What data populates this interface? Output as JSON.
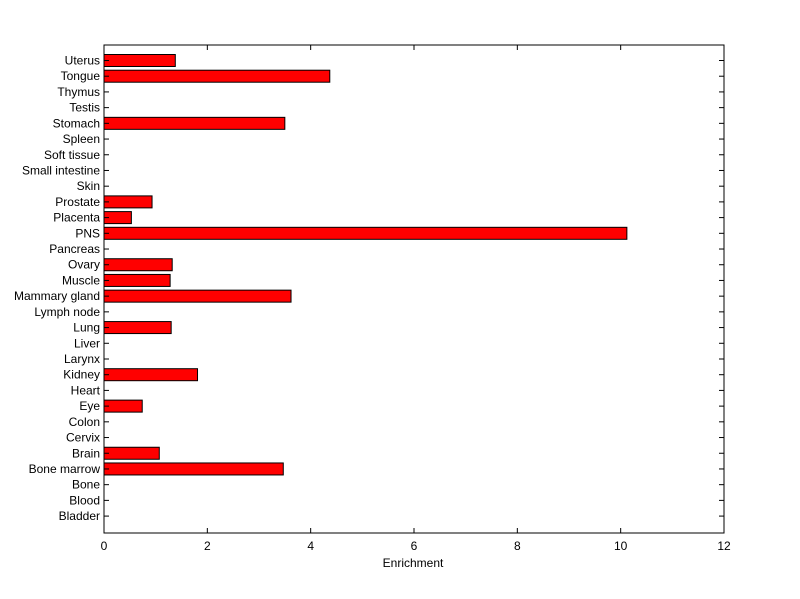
{
  "chart_data": {
    "type": "bar",
    "orientation": "horizontal",
    "title": "",
    "xlabel": "Enrichment",
    "ylabel": "",
    "xlim": [
      0,
      12
    ],
    "xticks": [
      0,
      2,
      4,
      6,
      8,
      10,
      12
    ],
    "grid": false,
    "legend": "none",
    "bar_color": "#ff0000",
    "categories": [
      "Uterus",
      "Tongue",
      "Thymus",
      "Testis",
      "Stomach",
      "Spleen",
      "Soft tissue",
      "Small intestine",
      "Skin",
      "Prostate",
      "Placenta",
      "PNS",
      "Pancreas",
      "Ovary",
      "Muscle",
      "Mammary gland",
      "Lymph node",
      "Lung",
      "Liver",
      "Larynx",
      "Kidney",
      "Heart",
      "Eye",
      "Colon",
      "Cervix",
      "Brain",
      "Bone marrow",
      "Bone",
      "Blood",
      "Bladder"
    ],
    "values": [
      1.38,
      4.37,
      0,
      0,
      3.5,
      0,
      0,
      0,
      0,
      0.93,
      0.53,
      10.12,
      0,
      1.32,
      1.28,
      3.62,
      0,
      1.3,
      0,
      0,
      1.81,
      0,
      0.74,
      0,
      0,
      1.07,
      3.47,
      0,
      0,
      0
    ]
  }
}
